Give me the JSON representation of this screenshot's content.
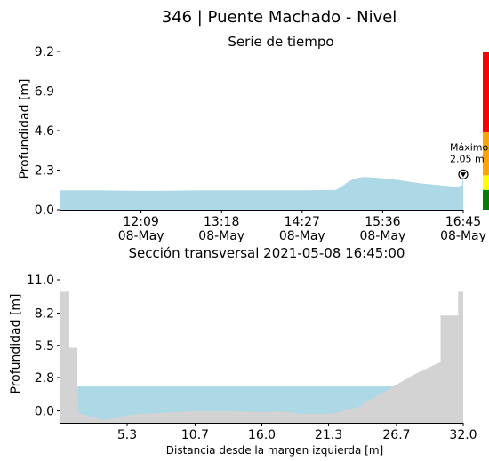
{
  "figure": {
    "title": "346 | Puente Machado  - Nivel"
  },
  "colors": {
    "water": "#add8e6",
    "ground": "#d3d3d3",
    "level_red": "#ff0000",
    "level_orange": "#ffa500",
    "level_yellow": "#ffff00",
    "level_green": "#008000"
  },
  "chart_data": [
    {
      "type": "area",
      "title": "Serie de tiempo",
      "xlabel": "",
      "ylabel": "Profundidad [m]",
      "ylim": [
        0,
        9.2
      ],
      "yticks": [
        "0.0",
        "2.3",
        "4.6",
        "6.9",
        "9.2"
      ],
      "xticks": [
        {
          "time": "12:09",
          "date": "08-May"
        },
        {
          "time": "13:18",
          "date": "08-May"
        },
        {
          "time": "14:27",
          "date": "08-May"
        },
        {
          "time": "15:36",
          "date": "08-May"
        },
        {
          "time": "16:45",
          "date": "08-May"
        }
      ],
      "x_start": "11:00",
      "series": [
        {
          "x": [
            "11:00",
            "11:30",
            "12:00",
            "12:30",
            "13:00",
            "13:30",
            "14:00",
            "14:30",
            "14:56",
            "15:00",
            "15:05",
            "15:10",
            "15:15",
            "15:20",
            "15:25",
            "15:30",
            "15:40",
            "15:50",
            "16:00",
            "16:10",
            "16:20",
            "16:30",
            "16:40",
            "16:44",
            "16:45"
          ],
          "values": [
            1.12,
            1.12,
            1.1,
            1.1,
            1.12,
            1.12,
            1.12,
            1.12,
            1.15,
            1.3,
            1.55,
            1.75,
            1.85,
            1.9,
            1.88,
            1.86,
            1.8,
            1.72,
            1.62,
            1.52,
            1.45,
            1.38,
            1.32,
            1.42,
            2.05
          ]
        }
      ],
      "annotation": {
        "label": "Máximo",
        "value_text": "2.05 m",
        "x": "16:45",
        "y": 2.05
      },
      "level_bands": [
        {
          "from": 0.0,
          "to": 1.15,
          "color_key": "level_green"
        },
        {
          "from": 1.15,
          "to": 2.0,
          "color_key": "level_yellow"
        },
        {
          "from": 2.0,
          "to": 4.5,
          "color_key": "level_orange"
        },
        {
          "from": 4.5,
          "to": 9.2,
          "color_key": "level_red"
        }
      ]
    },
    {
      "type": "area",
      "title": "Sección transversal 2021-05-08 16:45:00",
      "xlabel": "Distancia desde la margen izquierda [m]",
      "ylabel": "Profundidad [m]",
      "xlim": [
        0,
        32.0
      ],
      "ylim": [
        -1.0,
        11.0
      ],
      "xticks": [
        "5.3",
        "10.7",
        "16.0",
        "21.3",
        "26.7",
        "32.0"
      ],
      "yticks": [
        "0.0",
        "2.8",
        "5.5",
        "8.2",
        "11.0"
      ],
      "water_level": 2.05,
      "water_from": 1.35,
      "water_to": 26.6,
      "ground_profile": {
        "x": [
          0.0,
          0.0,
          0.7,
          0.7,
          1.35,
          1.35,
          1.45,
          3.5,
          5.7,
          10.0,
          13.0,
          16.0,
          17.7,
          19.0,
          21.5,
          23.6,
          28.0,
          30.2,
          30.2,
          31.6,
          31.6,
          32.0,
          32.0
        ],
        "y": [
          -1.0,
          10.0,
          10.0,
          5.3,
          5.3,
          2.0,
          -0.2,
          -0.8,
          -0.3,
          -0.05,
          -0.02,
          -0.1,
          -0.05,
          -0.25,
          -0.25,
          0.3,
          3.0,
          4.1,
          8.0,
          8.0,
          10.0,
          10.0,
          -1.0
        ]
      }
    }
  ]
}
